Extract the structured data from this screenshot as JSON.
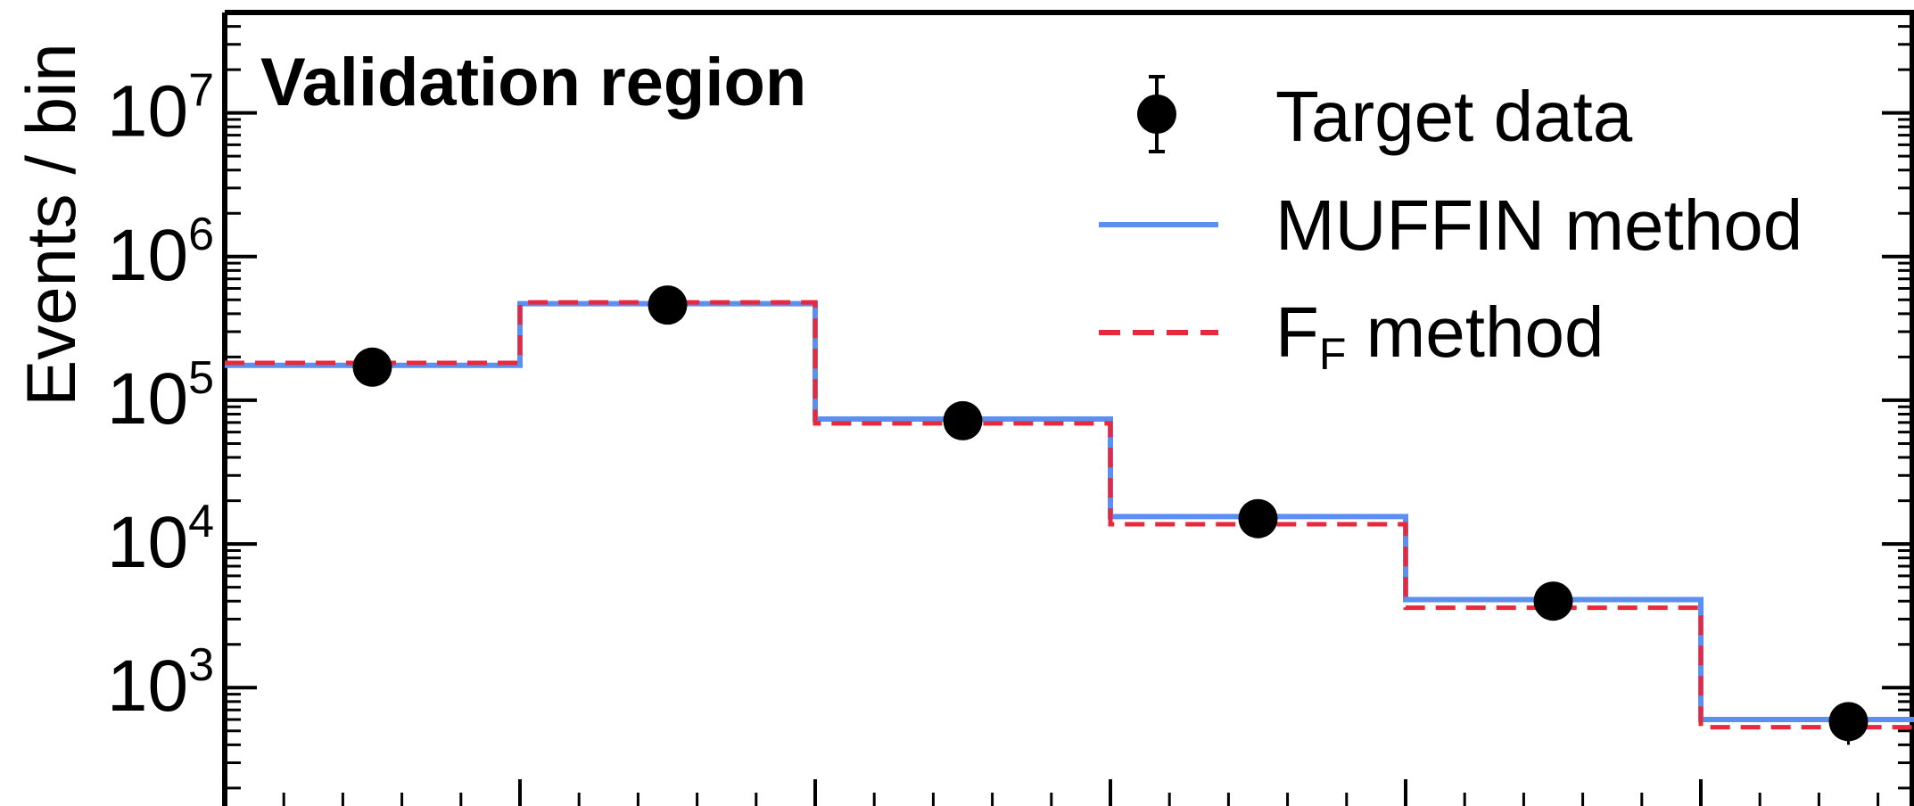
{
  "chart_data": {
    "type": "histogram",
    "title": "",
    "xlabel": "",
    "ylabel": "Events / bin",
    "y_scale": "log",
    "ylim": [
      150,
      50000000
    ],
    "y_ticks": [
      {
        "value": 1000,
        "base": "10",
        "exp": "3"
      },
      {
        "value": 10000,
        "base": "10",
        "exp": "4"
      },
      {
        "value": 100000,
        "base": "10",
        "exp": "5"
      },
      {
        "value": 1000000,
        "base": "10",
        "exp": "6"
      },
      {
        "value": 10000000,
        "base": "10",
        "exp": "7"
      }
    ],
    "annotation": "Validation region",
    "legend_position": "top-right",
    "colors": {
      "data": "#000000",
      "muffin": "#5b8ff0",
      "ff": "#e8283c"
    },
    "bins": 6,
    "series": [
      {
        "name": "Target data",
        "style": "points",
        "values": [
          170000,
          460000,
          72000,
          15000,
          4000,
          580
        ],
        "err_up": [
          35000,
          90000,
          12000,
          3000,
          900,
          180
        ],
        "err_down": [
          35000,
          90000,
          12000,
          3000,
          900,
          180
        ]
      },
      {
        "name": "MUFFIN method",
        "style": "step-solid",
        "values": [
          175000,
          470000,
          74000,
          15500,
          4100,
          600
        ]
      },
      {
        "name_main": "F",
        "name_sub": "F",
        "name_rest": " method",
        "style": "step-dashed",
        "values": [
          182000,
          480000,
          69000,
          13700,
          3600,
          530
        ]
      }
    ]
  }
}
